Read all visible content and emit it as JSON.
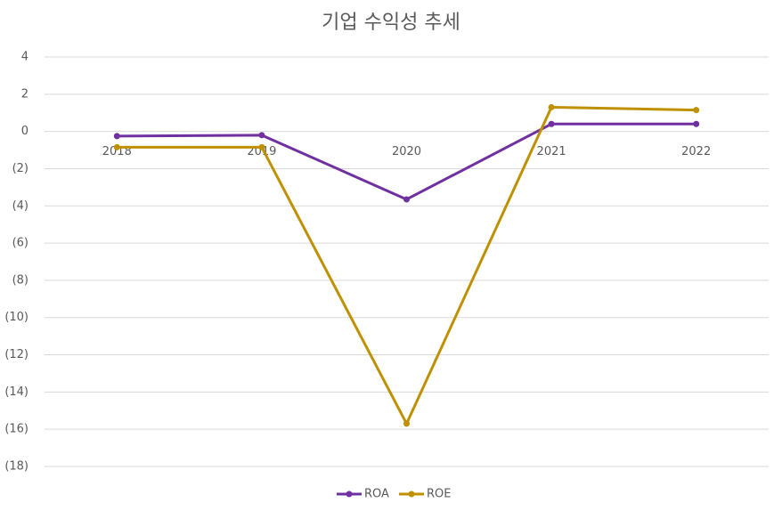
{
  "chart_data": {
    "type": "line",
    "title": "기업 수익성 추세",
    "categories": [
      "2018",
      "2019",
      "2020",
      "2021",
      "2022"
    ],
    "series": [
      {
        "name": "ROA",
        "color": "#7030a0",
        "values": [
          -0.25,
          -0.2,
          -3.65,
          0.4,
          0.4
        ]
      },
      {
        "name": "ROE",
        "color": "#bf9000",
        "values": [
          -0.85,
          -0.85,
          -15.7,
          1.3,
          1.15
        ]
      }
    ],
    "ylim": [
      -18,
      4
    ],
    "yticks": [
      {
        "value": -18,
        "label": "(18)"
      },
      {
        "value": -16,
        "label": "(16)"
      },
      {
        "value": -14,
        "label": "(14)"
      },
      {
        "value": -12,
        "label": "(12)"
      },
      {
        "value": -10,
        "label": "(10)"
      },
      {
        "value": -8,
        "label": "(8)"
      },
      {
        "value": -6,
        "label": "(6)"
      },
      {
        "value": -4,
        "label": "(4)"
      },
      {
        "value": -2,
        "label": "(2)"
      },
      0,
      2,
      4
    ],
    "grid": true,
    "legend": "bottom"
  }
}
